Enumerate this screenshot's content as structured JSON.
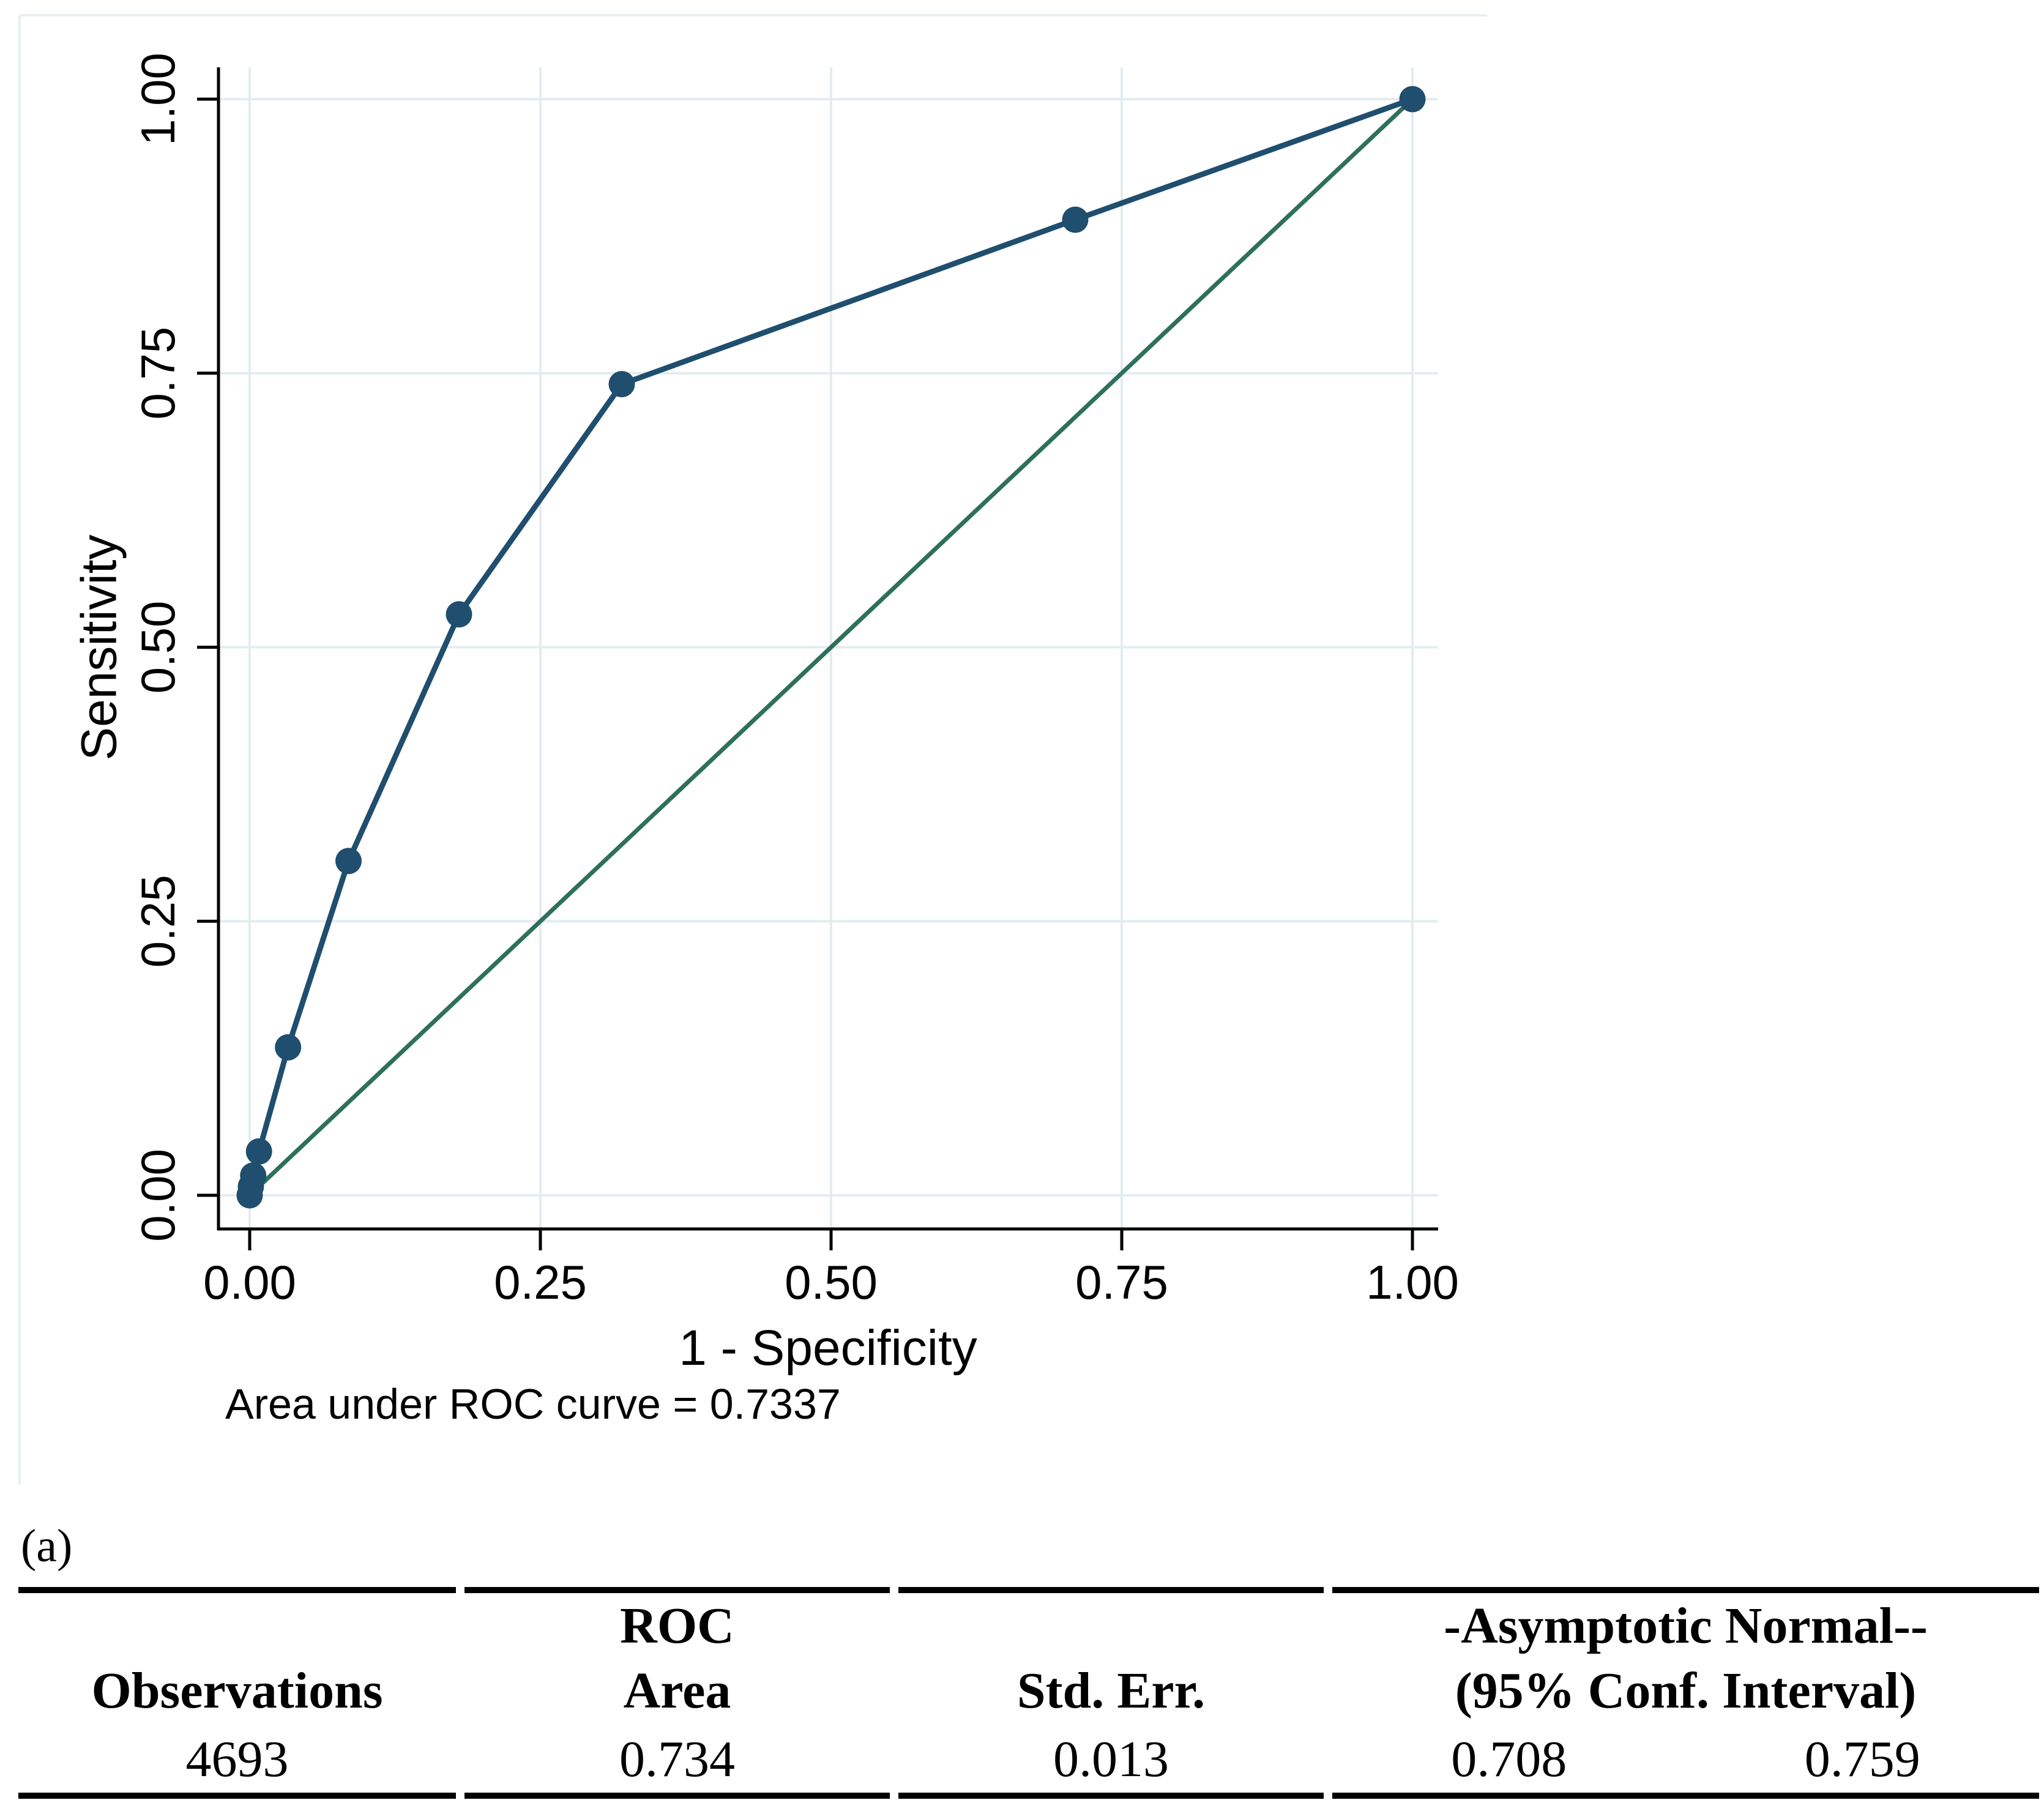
{
  "figure": {
    "panel_label": "(a)"
  },
  "chart_data": {
    "type": "line",
    "title": "",
    "xlabel": "1 - Specificity",
    "ylabel": "Sensitivity",
    "xlim": [
      0,
      1
    ],
    "ylim": [
      0,
      1
    ],
    "grid": true,
    "grid_color": "#e3ecef",
    "frame_color": "#e7eef1",
    "axis_color": "#000000",
    "xticks": [
      {
        "value": 0,
        "label": "0.00"
      },
      {
        "value": 0.25,
        "label": "0.25"
      },
      {
        "value": 0.5,
        "label": "0.50"
      },
      {
        "value": 0.75,
        "label": "0.75"
      },
      {
        "value": 1,
        "label": "1.00"
      }
    ],
    "yticks": [
      {
        "value": 0,
        "label": "0.00"
      },
      {
        "value": 0.25,
        "label": "0.25"
      },
      {
        "value": 0.5,
        "label": "0.50"
      },
      {
        "value": 0.75,
        "label": "0.75"
      },
      {
        "value": 1,
        "label": "1.00"
      }
    ],
    "series": [
      {
        "name": "reference-diagonal",
        "color": "#2e705a",
        "line_width": 7,
        "marker": false,
        "points": [
          [
            0,
            0
          ],
          [
            1,
            1
          ]
        ]
      },
      {
        "name": "roc-curve",
        "color": "#1f4e6e",
        "line_width": 9,
        "marker": true,
        "marker_radius": 21.5,
        "points": [
          [
            0,
            0
          ],
          [
            0.001,
            0.008
          ],
          [
            0.003,
            0.018
          ],
          [
            0.008,
            0.04
          ],
          [
            0.033,
            0.135
          ],
          [
            0.085,
            0.305
          ],
          [
            0.18,
            0.53
          ],
          [
            0.32,
            0.74
          ],
          [
            0.71,
            0.89
          ],
          [
            1,
            1
          ]
        ]
      }
    ],
    "annotation": "Area under ROC curve = 0.7337",
    "legend_position": "none"
  },
  "table": {
    "columns": [
      {
        "header_top": "",
        "header": "Observations",
        "values": [
          "4693"
        ]
      },
      {
        "header_top": "ROC",
        "header": "Area",
        "values": [
          "0.734"
        ]
      },
      {
        "header_top": "",
        "header": "Std. Err.",
        "values": [
          "0.013"
        ]
      },
      {
        "header_top": "-Asymptotic Normal--",
        "header": "(95% Conf. Interval)",
        "values": [
          "0.708",
          "0.759"
        ]
      }
    ]
  }
}
